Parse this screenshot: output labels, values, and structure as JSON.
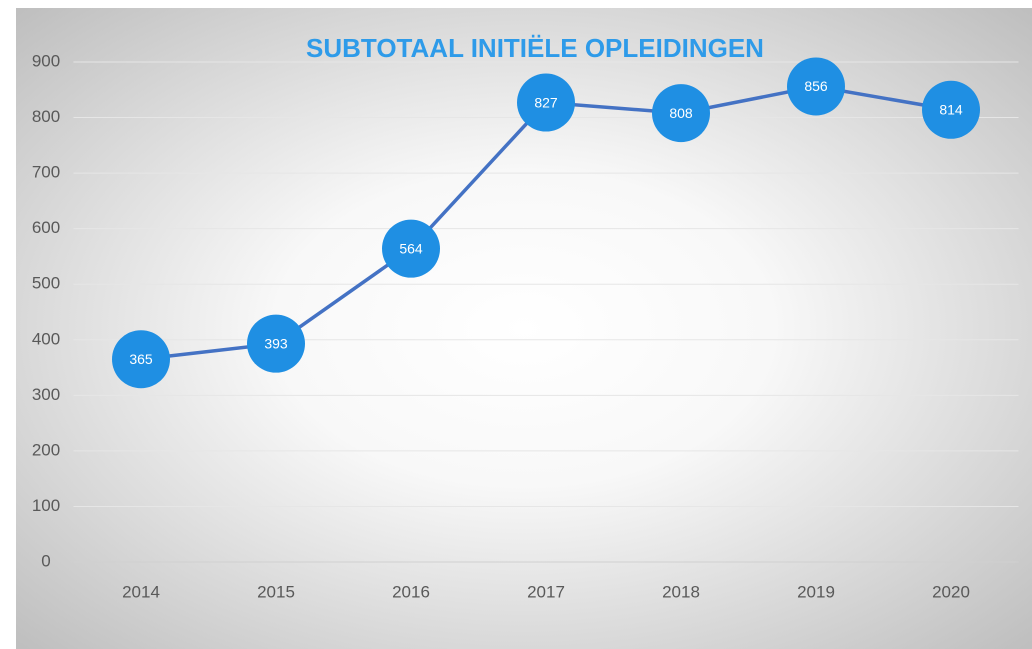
{
  "chart_data": {
    "type": "line",
    "title": "SUBTOTAAL INITIËLE OPLEIDINGEN",
    "categories": [
      "2014",
      "2015",
      "2016",
      "2017",
      "2018",
      "2019",
      "2020"
    ],
    "values": [
      365,
      393,
      564,
      827,
      808,
      856,
      814
    ],
    "color": "#4472c4",
    "marker_color": "#1f8fe3",
    "ylim": [
      0,
      900
    ],
    "yticks": [
      0,
      100,
      200,
      300,
      400,
      500,
      600,
      700,
      800,
      900
    ],
    "grid": true
  }
}
